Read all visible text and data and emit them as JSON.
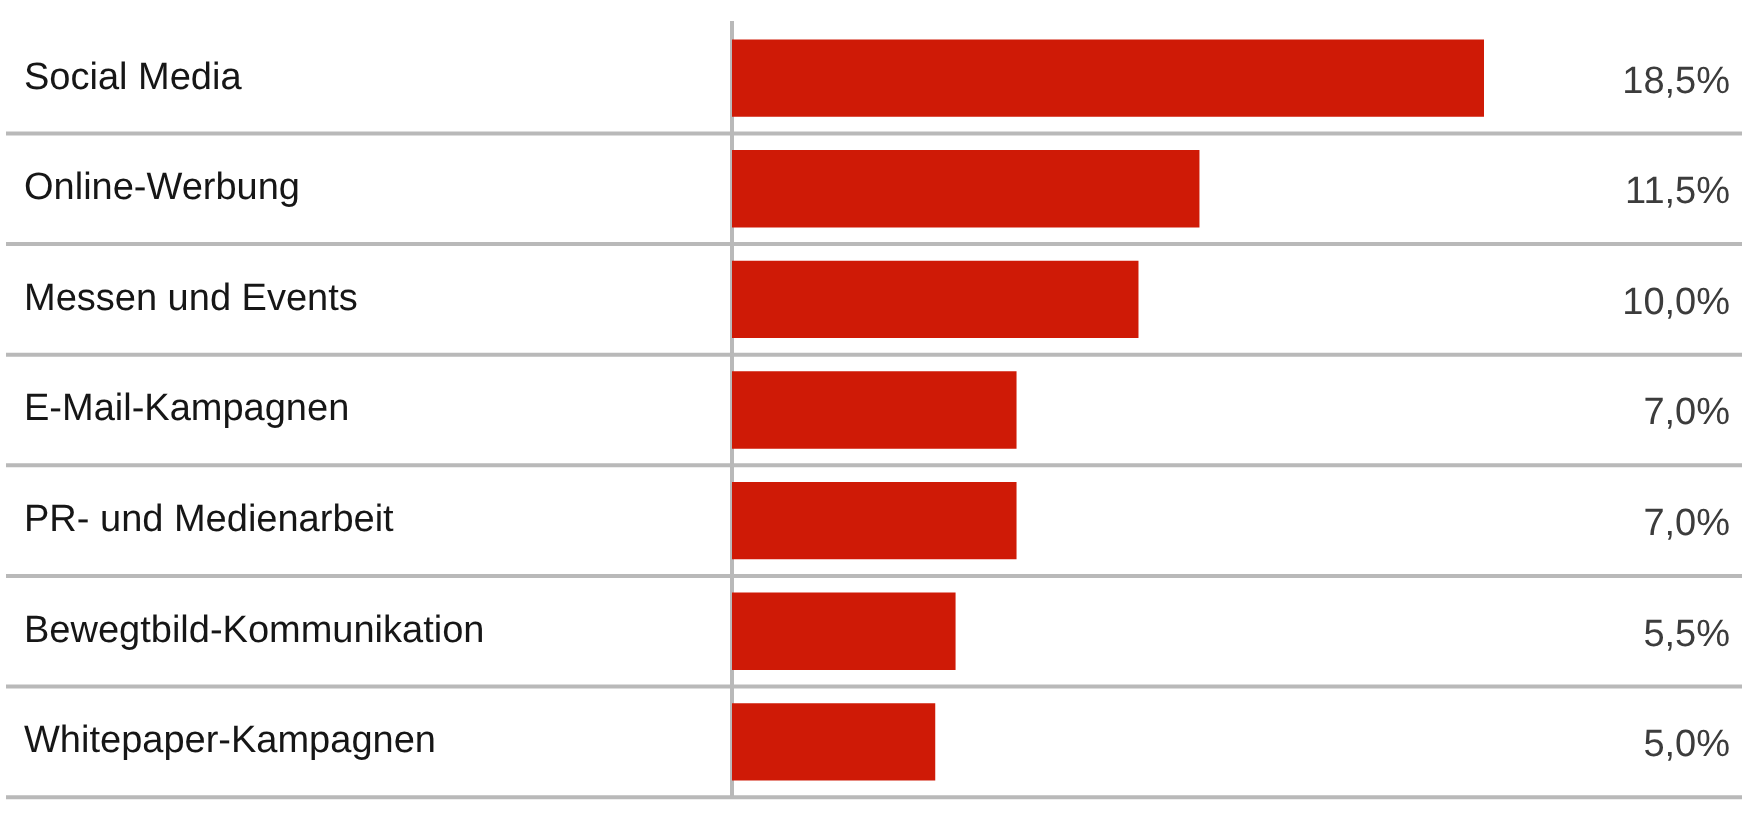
{
  "chart_data": {
    "type": "bar",
    "orientation": "horizontal",
    "categories": [
      "Social Media",
      "Online-Werbung",
      "Messen und Events",
      "E-Mail-Kampagnen",
      "PR- und Medienarbeit",
      "Bewegtbild-Kommunikation",
      "Whitepaper-Kampagnen"
    ],
    "values": [
      18.5,
      11.5,
      10,
      7,
      7,
      5.5,
      5
    ],
    "value_labels": [
      "18,5%",
      "11,5%",
      "10,0%",
      "7,0%",
      "7,0%",
      "5,5%",
      "5,0%"
    ],
    "color": "#cf1a06",
    "grid": "y",
    "tick_labels": "y",
    "legend": false
  }
}
